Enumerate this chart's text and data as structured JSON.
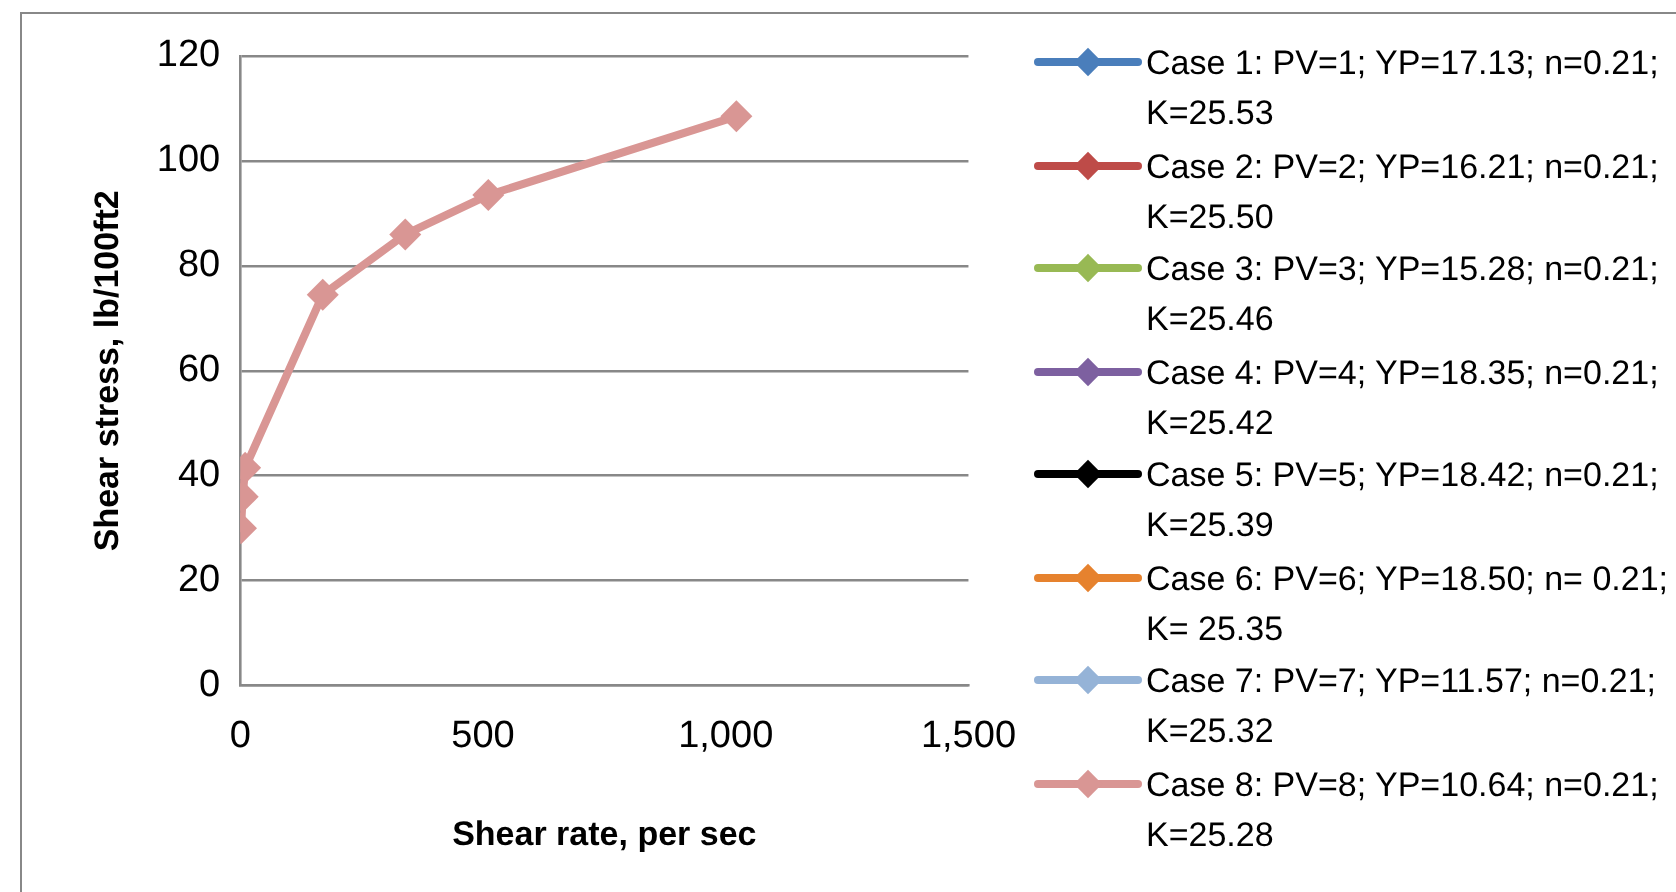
{
  "chart_data": {
    "type": "line",
    "xlabel": "Shear rate, per sec",
    "ylabel": "Shear stress, lb/100ft2",
    "x": [
      1.7,
      5.11,
      10.2,
      170,
      340,
      511,
      1022
    ],
    "xlim": [
      0,
      1500
    ],
    "xticks": [
      0,
      500,
      {
        "value": 1000,
        "label": "1,000"
      },
      {
        "value": 1500,
        "label": "1,500"
      }
    ],
    "ylim": [
      0,
      120
    ],
    "yticks": [
      0,
      20,
      40,
      60,
      80,
      100,
      120
    ],
    "grid": "y",
    "legend": "right",
    "marker": "diamond",
    "line_style": "solid",
    "series": [
      {
        "name": "Case 1: PV=1; YP=17.13; n=0.21; K=25.53",
        "color": "#4a7ebb",
        "values": [
          null,
          null,
          null,
          null,
          null,
          null,
          null
        ]
      },
      {
        "name": "Case 2: PV=2; YP=16.21; n=0.21; K=25.50",
        "color": "#be4b48",
        "values": [
          null,
          null,
          null,
          null,
          null,
          null,
          null
        ]
      },
      {
        "name": "Case 3: PV=3; YP=15.28; n=0.21; K=25.46",
        "color": "#98b954",
        "values": [
          null,
          null,
          null,
          null,
          null,
          null,
          null
        ]
      },
      {
        "name": "Case 4: PV=4; YP=18.35; n=0.21; K=25.42",
        "color": "#7d60a0",
        "values": [
          null,
          null,
          null,
          null,
          null,
          null,
          null
        ]
      },
      {
        "name": "Case 5: PV=5; YP=18.42; n=0.21; K=25.39",
        "color": "#000000",
        "values": [
          null,
          null,
          null,
          null,
          null,
          null,
          null
        ]
      },
      {
        "name": "Case 6: PV=6; YP=18.50; n= 0.21; K= 25.35",
        "color": "#e6822e",
        "values": [
          null,
          null,
          null,
          null,
          null,
          null,
          null
        ]
      },
      {
        "name": "Case 7: PV=7; YP=11.57; n=0.21; K=25.32",
        "color": "#95b3d7",
        "values": [
          null,
          null,
          null,
          null,
          null,
          null,
          null
        ]
      },
      {
        "name": "Case 8: PV=8; YP=10.64; n=0.21; K=25.28",
        "color": "#d99694",
        "values": [
          30,
          36,
          41.5,
          74.5,
          86,
          93.5,
          108.5
        ]
      }
    ]
  }
}
